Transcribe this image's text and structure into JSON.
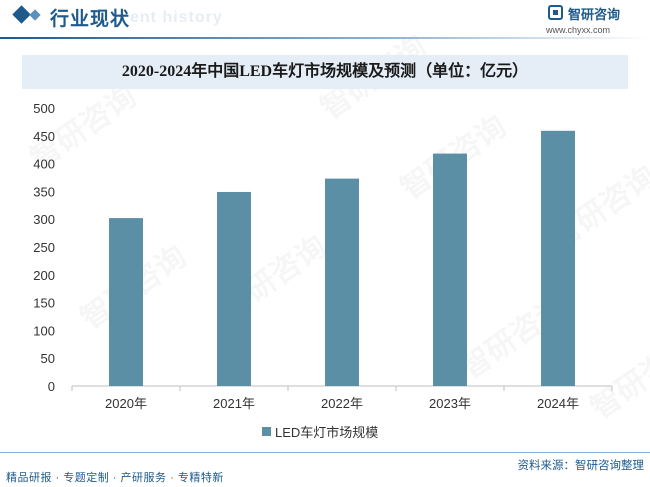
{
  "header": {
    "section_title": "行业现状",
    "section_subtitle": "ent history",
    "brand_name": "智研咨询",
    "brand_url": "www.chyxx.com"
  },
  "chart_title": "2020-2024年中国LED车灯市场规模及预测（单位：亿元）",
  "chart_data": {
    "type": "bar",
    "title": "2020-2024年中国LED车灯市场规模及预测（单位：亿元）",
    "categories": [
      "2020年",
      "2021年",
      "2022年",
      "2023年",
      "2024年"
    ],
    "series": [
      {
        "name": "LED车灯市场规模",
        "values": [
          302,
          349,
          373,
          418,
          459
        ],
        "color": "#5b8fa6"
      }
    ],
    "ylim": [
      0,
      500
    ],
    "yticks": [
      0,
      50,
      100,
      150,
      200,
      250,
      300,
      350,
      400,
      450,
      500
    ],
    "xlabel": "",
    "ylabel": "",
    "grid": false,
    "legend_position": "bottom"
  },
  "watermark_text": "智研咨询",
  "footer": {
    "left_text": "精品研报 · 专题定制 · 产研服务 · 专精特新",
    "source_text": "资料来源：智研咨询整理"
  }
}
